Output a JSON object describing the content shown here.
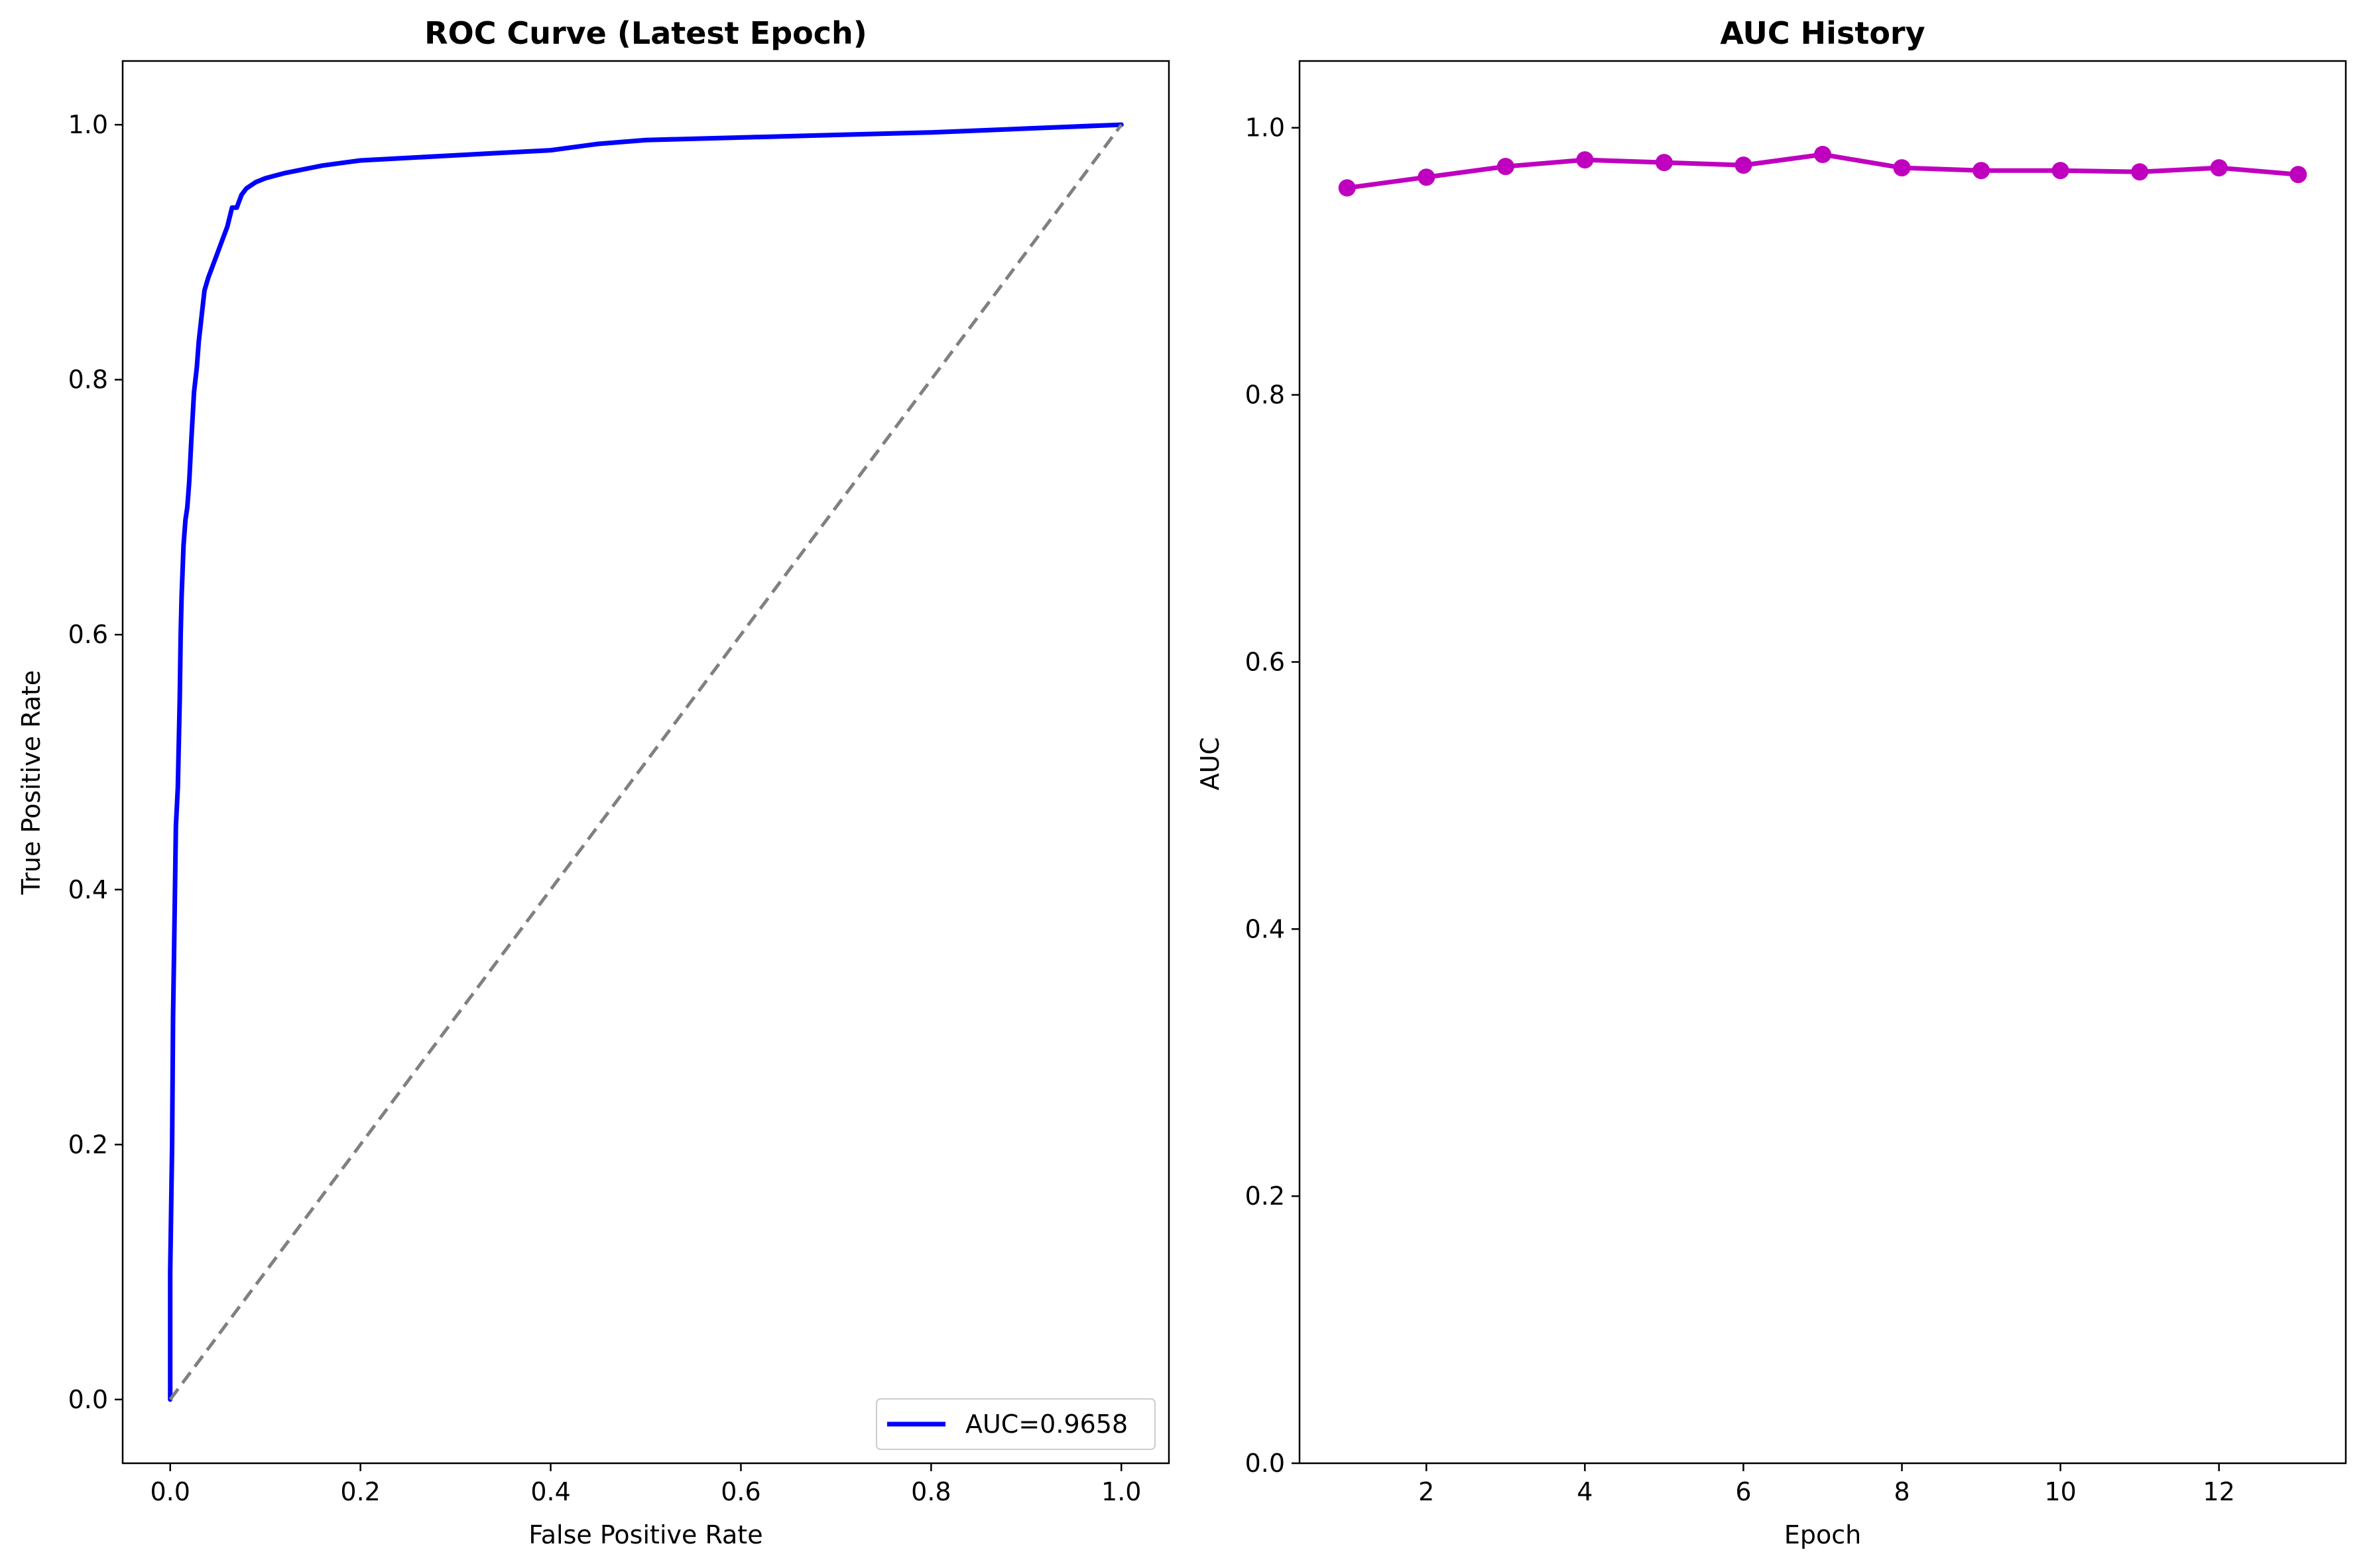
{
  "chart_data": [
    {
      "type": "line",
      "title": "ROC Curve (Latest Epoch)",
      "xlabel": "False Positive Rate",
      "ylabel": "True Positive Rate",
      "xlim": [
        -0.05,
        1.05
      ],
      "ylim": [
        -0.05,
        1.05
      ],
      "xticks": [
        0.0,
        0.2,
        0.4,
        0.6,
        0.8,
        1.0
      ],
      "xtick_labels": [
        "0.0",
        "0.2",
        "0.4",
        "0.6",
        "0.8",
        "1.0"
      ],
      "yticks": [
        0.0,
        0.2,
        0.4,
        0.6,
        0.8,
        1.0
      ],
      "ytick_labels": [
        "0.0",
        "0.2",
        "0.4",
        "0.6",
        "0.8",
        "1.0"
      ],
      "grid": false,
      "legend_position": "bottom-right",
      "series": [
        {
          "name": "AUC=0.9658",
          "color": "#0000ff",
          "style": "solid",
          "x": [
            0.0,
            0.0,
            0.002,
            0.003,
            0.004,
            0.005,
            0.006,
            0.008,
            0.01,
            0.011,
            0.012,
            0.014,
            0.016,
            0.018,
            0.02,
            0.022,
            0.025,
            0.028,
            0.03,
            0.033,
            0.036,
            0.04,
            0.045,
            0.05,
            0.055,
            0.06,
            0.065,
            0.07,
            0.075,
            0.08,
            0.09,
            0.1,
            0.11,
            0.12,
            0.14,
            0.16,
            0.18,
            0.2,
            0.25,
            0.3,
            0.35,
            0.4,
            0.45,
            0.5,
            0.6,
            0.7,
            0.8,
            0.9,
            1.0
          ],
          "y": [
            0.0,
            0.1,
            0.2,
            0.3,
            0.35,
            0.4,
            0.45,
            0.48,
            0.55,
            0.6,
            0.63,
            0.67,
            0.69,
            0.7,
            0.72,
            0.75,
            0.79,
            0.81,
            0.83,
            0.85,
            0.87,
            0.88,
            0.89,
            0.9,
            0.91,
            0.92,
            0.935,
            0.935,
            0.945,
            0.95,
            0.955,
            0.958,
            0.96,
            0.962,
            0.965,
            0.968,
            0.97,
            0.972,
            0.974,
            0.976,
            0.978,
            0.98,
            0.985,
            0.988,
            0.99,
            0.992,
            0.994,
            0.997,
            1.0
          ]
        },
        {
          "color": "#808080",
          "style": "dashed",
          "x": [
            0.0,
            1.0
          ],
          "y": [
            0.0,
            1.0
          ]
        }
      ]
    },
    {
      "type": "line",
      "title": "AUC History",
      "xlabel": "Epoch",
      "ylabel": "AUC",
      "xlim": [
        0.4,
        13.6
      ],
      "ylim": [
        0.0,
        1.05
      ],
      "xticks": [
        2,
        4,
        6,
        8,
        10,
        12
      ],
      "xtick_labels": [
        "2",
        "4",
        "6",
        "8",
        "10",
        "12"
      ],
      "yticks": [
        0.0,
        0.2,
        0.4,
        0.6,
        0.8,
        1.0
      ],
      "ytick_labels": [
        "0.0",
        "0.2",
        "0.4",
        "0.6",
        "0.8",
        "1.0"
      ],
      "grid": false,
      "series": [
        {
          "color": "#bf00bf",
          "marker": "circle",
          "x": [
            1,
            2,
            3,
            4,
            5,
            6,
            7,
            8,
            9,
            10,
            11,
            12,
            13
          ],
          "y": [
            0.955,
            0.963,
            0.971,
            0.976,
            0.974,
            0.972,
            0.98,
            0.97,
            0.968,
            0.968,
            0.967,
            0.97,
            0.965
          ]
        }
      ]
    }
  ]
}
